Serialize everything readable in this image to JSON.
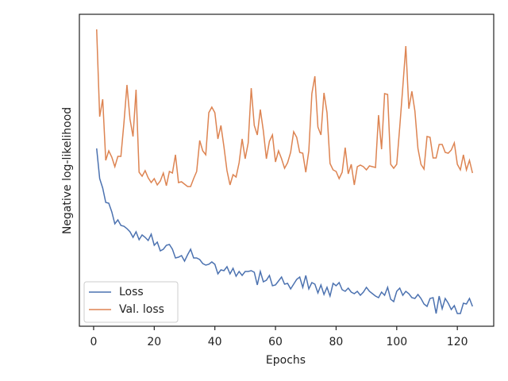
{
  "chart_data": {
    "type": "line",
    "xlabel": "Epochs",
    "ylabel": "Negative log-likelihood",
    "x": [
      1,
      2,
      3,
      4,
      5,
      6,
      7,
      8,
      9,
      10,
      11,
      12,
      13,
      14,
      15,
      16,
      17,
      18,
      19,
      20,
      21,
      22,
      23,
      24,
      25,
      26,
      27,
      28,
      29,
      30,
      31,
      32,
      33,
      34,
      35,
      36,
      37,
      38,
      39,
      40,
      41,
      42,
      43,
      44,
      45,
      46,
      47,
      48,
      49,
      50,
      51,
      52,
      53,
      54,
      55,
      56,
      57,
      58,
      59,
      60,
      61,
      62,
      63,
      64,
      65,
      66,
      67,
      68,
      69,
      70,
      71,
      72,
      73,
      74,
      75,
      76,
      77,
      78,
      79,
      80,
      81,
      82,
      83,
      84,
      85,
      86,
      87,
      88,
      89,
      90,
      91,
      92,
      93,
      94,
      95,
      96,
      97,
      98,
      99,
      100,
      101,
      102,
      103,
      104,
      105,
      106,
      107,
      108,
      109,
      110,
      111,
      112,
      113,
      114,
      115,
      116,
      117,
      118,
      119,
      120,
      121,
      122,
      123,
      124,
      125
    ],
    "series": [
      {
        "name": "Loss",
        "color": "#4c72b0",
        "values": [
          224,
          186,
          174,
          156,
          155,
          144,
          129,
          134,
          127,
          126,
          123,
          119,
          112,
          119,
          109,
          115,
          112,
          108,
          116,
          102,
          106,
          95,
          97,
          102,
          103,
          97,
          86,
          87,
          89,
          82,
          90,
          97,
          86,
          86,
          84,
          79,
          77,
          78,
          81,
          78,
          66,
          71,
          70,
          75,
          66,
          73,
          63,
          69,
          64,
          69,
          69,
          70,
          68,
          52,
          69,
          56,
          58,
          64,
          51,
          52,
          57,
          62,
          53,
          54,
          47,
          53,
          59,
          62,
          49,
          64,
          47,
          55,
          53,
          42,
          52,
          40,
          49,
          38,
          54,
          51,
          55,
          46,
          44,
          48,
          43,
          41,
          44,
          39,
          43,
          49,
          44,
          41,
          38,
          36,
          43,
          39,
          49,
          34,
          31,
          44,
          48,
          39,
          44,
          41,
          36,
          35,
          40,
          35,
          28,
          25,
          35,
          36,
          16,
          38,
          22,
          35,
          29,
          21,
          26,
          16,
          16,
          29,
          28,
          35,
          25
        ]
      },
      {
        "name": "Val. loss",
        "color": "#dd8452",
        "values": [
          374,
          264,
          286,
          209,
          221,
          213,
          201,
          214,
          214,
          256,
          304,
          261,
          239,
          298,
          194,
          189,
          196,
          187,
          181,
          186,
          178,
          183,
          193,
          177,
          195,
          193,
          216,
          181,
          182,
          179,
          176,
          176,
          186,
          195,
          234,
          221,
          216,
          269,
          276,
          269,
          236,
          253,
          226,
          196,
          178,
          191,
          188,
          206,
          236,
          211,
          231,
          300,
          253,
          241,
          273,
          246,
          211,
          233,
          241,
          207,
          221,
          211,
          199,
          206,
          219,
          245,
          238,
          219,
          218,
          194,
          221,
          293,
          315,
          251,
          241,
          294,
          269,
          205,
          197,
          195,
          186,
          194,
          225,
          192,
          204,
          178,
          201,
          203,
          201,
          197,
          202,
          201,
          200,
          266,
          223,
          293,
          292,
          204,
          199,
          204,
          251,
          301,
          353,
          274,
          296,
          271,
          224,
          204,
          198,
          239,
          238,
          212,
          212,
          229,
          229,
          219,
          218,
          222,
          231,
          204,
          197,
          216,
          197,
          209,
          193
        ]
      }
    ],
    "xlim": [
      -4.7,
      132
    ],
    "xticks": [
      0,
      20,
      40,
      60,
      80,
      100,
      120
    ],
    "ylim": [
      0,
      393
    ],
    "legend": "lower left"
  }
}
